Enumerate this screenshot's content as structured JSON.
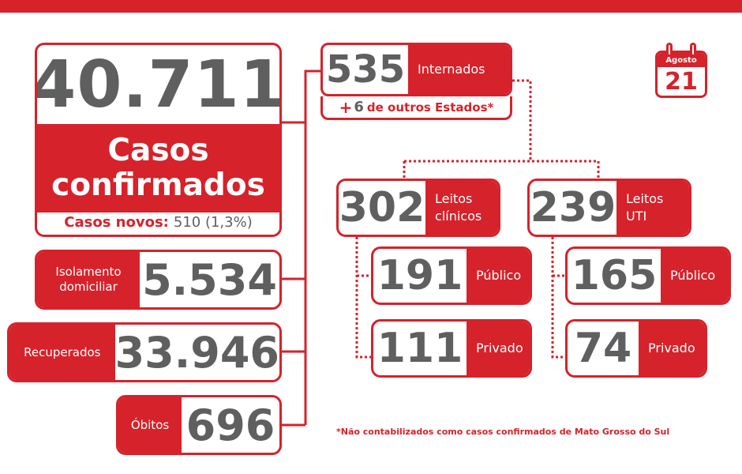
{
  "colors": {
    "accent": "#d6222b",
    "number_gray": "#5f5f5f"
  },
  "main": {
    "total": "40.711",
    "title_line1": "Casos",
    "title_line2": "confirmados",
    "new_cases_label": "Casos novos:",
    "new_cases_value": "510 (1,3%)"
  },
  "isolation": {
    "label_line1": "Isolamento",
    "label_line2": "domiciliar",
    "value": "5.534"
  },
  "recovered": {
    "label": "Recuperados",
    "value": "33.946"
  },
  "deaths": {
    "label": "Óbitos",
    "value": "696"
  },
  "hospitalized": {
    "value": "535",
    "label": "Internados",
    "other_states_prefix": "+",
    "other_states_count": "6",
    "other_states_label": "de outros Estados*"
  },
  "clinical_beds": {
    "value": "302",
    "label_line1": "Leitos",
    "label_line2": "clínicos"
  },
  "icu_beds": {
    "value": "239",
    "label_line1": "Leitos",
    "label_line2": "UTI"
  },
  "clinical_public": {
    "value": "191",
    "label": "Público"
  },
  "clinical_private": {
    "value": "111",
    "label": "Privado"
  },
  "icu_public": {
    "value": "165",
    "label": "Público"
  },
  "icu_private": {
    "value": "74",
    "label": "Privado"
  },
  "calendar": {
    "month": "Agosto",
    "day": "21",
    "icon": "calendar-icon"
  },
  "footnote": "*Não contabilizados como casos confirmados de Mato Grosso do Sul"
}
